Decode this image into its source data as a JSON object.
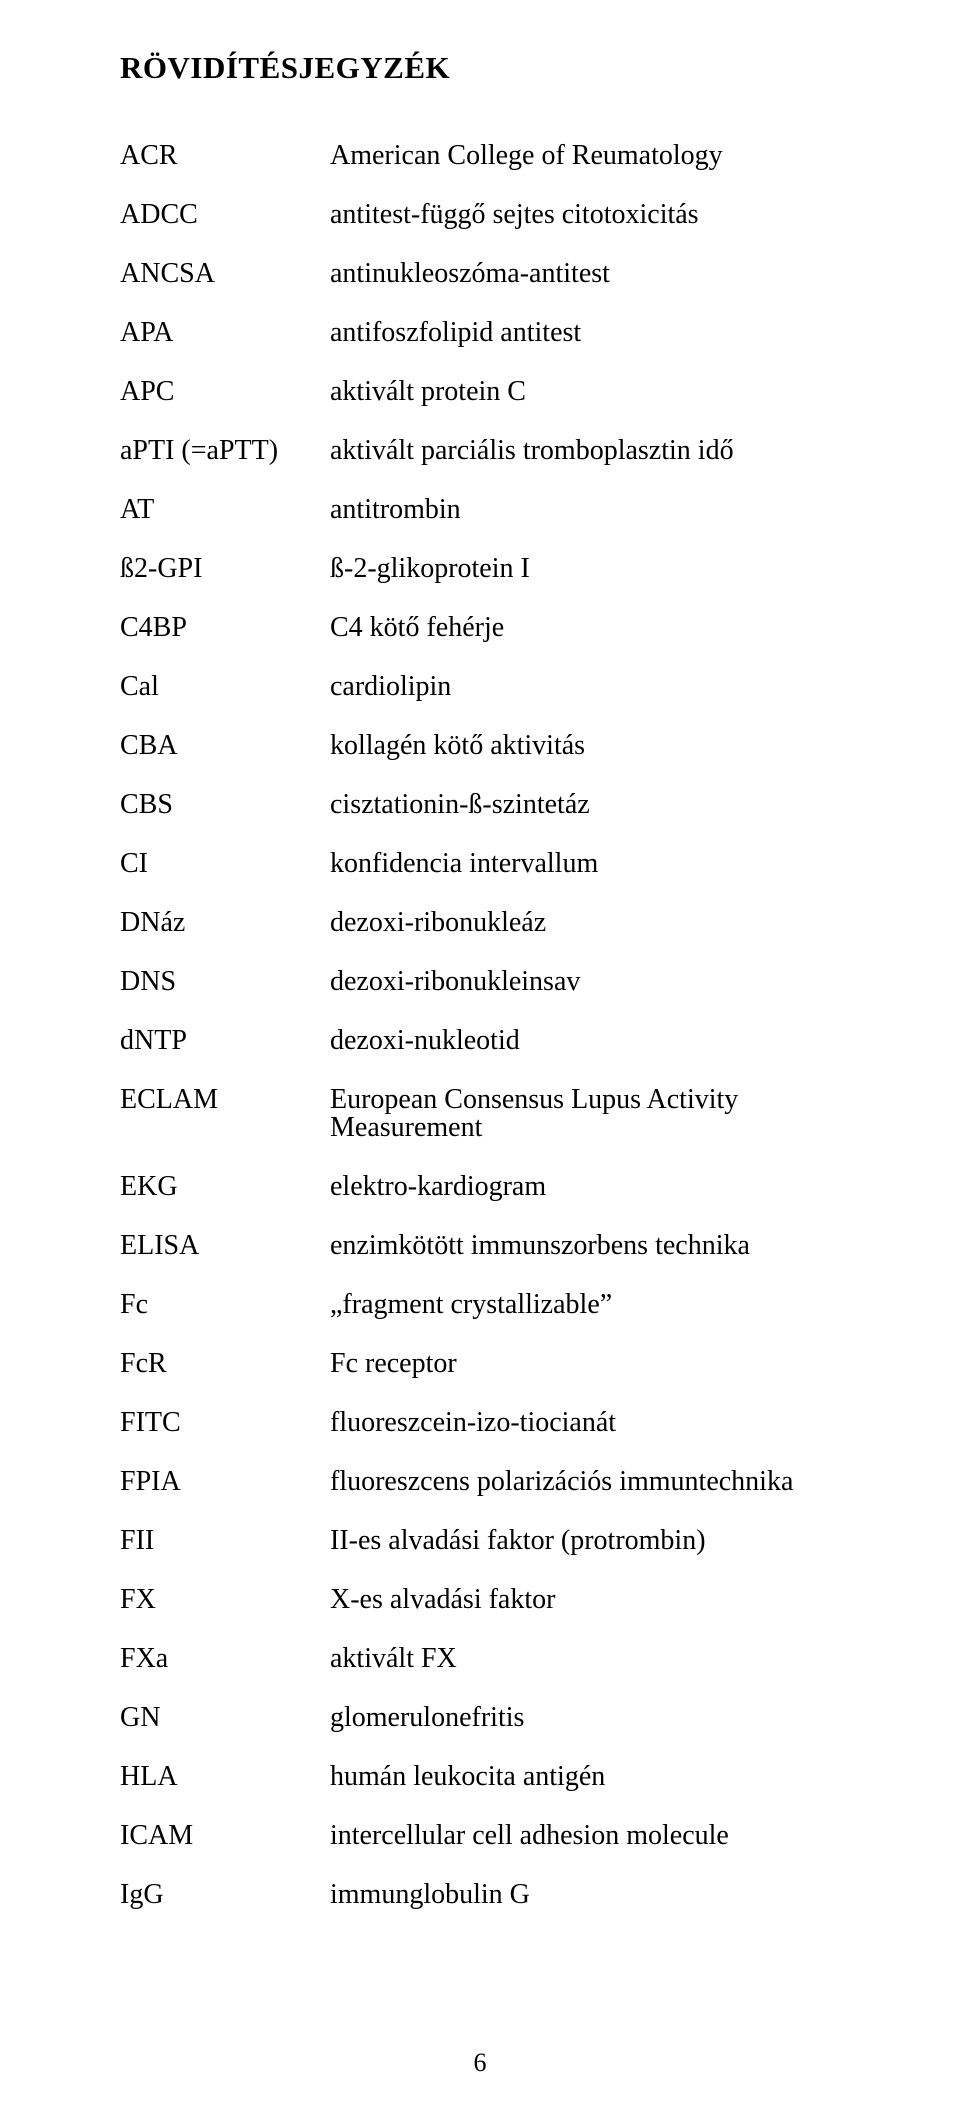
{
  "title": "RÖVIDÍTÉSJEGYZÉK",
  "page_number": "6",
  "entries": [
    {
      "abbr": "ACR",
      "def": "American College of Reumatology"
    },
    {
      "abbr": "ADCC",
      "def": "antitest-függő sejtes citotoxicitás"
    },
    {
      "abbr": "ANCSA",
      "def": "antinukleoszóma-antitest"
    },
    {
      "abbr": "APA",
      "def": "antifoszfolipid antitest"
    },
    {
      "abbr": "APC",
      "def": "aktivált protein C"
    },
    {
      "abbr": "aPTI (=aPTT)",
      "def": "aktivált parciális tromboplasztin idő"
    },
    {
      "abbr": "AT",
      "def": "antitrombin"
    },
    {
      "abbr": "ß2-GPI",
      "def": "ß-2-glikoprotein I"
    },
    {
      "abbr": "C4BP",
      "def": "C4 kötő fehérje"
    },
    {
      "abbr": "Cal",
      "def": "cardiolipin"
    },
    {
      "abbr": "CBA",
      "def": "kollagén kötő aktivitás"
    },
    {
      "abbr": "CBS",
      "def": "cisztationin-ß-szintetáz"
    },
    {
      "abbr": "CI",
      "def": "konfidencia intervallum"
    },
    {
      "abbr": "DNáz",
      "def": "dezoxi-ribonukleáz"
    },
    {
      "abbr": "DNS",
      "def": "dezoxi-ribonukleinsav"
    },
    {
      "abbr": "dNTP",
      "def": "dezoxi-nukleotid"
    },
    {
      "abbr": "ECLAM",
      "def": "European Consensus Lupus Activity Measurement"
    },
    {
      "abbr": "EKG",
      "def": "elektro-kardiogram"
    },
    {
      "abbr": "ELISA",
      "def": "enzimkötött immunszorbens technika"
    },
    {
      "abbr": "Fc",
      "def": "„fragment crystallizable”"
    },
    {
      "abbr": "FcR",
      "def": "Fc receptor"
    },
    {
      "abbr": "FITC",
      "def": "fluoreszcein-izo-tiocianát"
    },
    {
      "abbr": "FPIA",
      "def": "fluoreszcens polarizációs immuntechnika"
    },
    {
      "abbr": "FII",
      "def": "II-es alvadási faktor (protrombin)"
    },
    {
      "abbr": "FX",
      "def": "X-es alvadási faktor"
    },
    {
      "abbr": "FXa",
      "def": "aktivált FX"
    },
    {
      "abbr": "GN",
      "def": "glomerulonefritis"
    },
    {
      "abbr": "HLA",
      "def": "humán leukocita antigén"
    },
    {
      "abbr": "ICAM",
      "def": "intercellular cell adhesion molecule"
    },
    {
      "abbr": "IgG",
      "def": "immunglobulin G"
    }
  ]
}
